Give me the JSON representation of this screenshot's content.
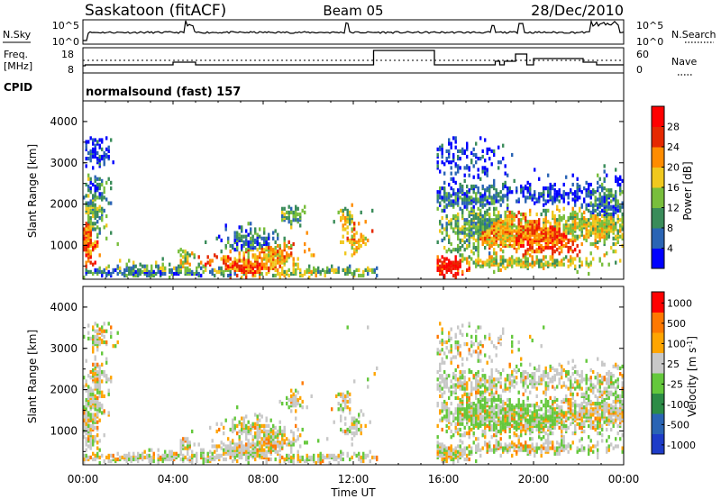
{
  "header": {
    "station": "Saskatoon (fitACF)",
    "beam": "Beam 05",
    "date": "28/Dec/2010"
  },
  "top_panels": {
    "nsky_label": "N.Sky",
    "nsky_ticks": [
      "10^5",
      "10^0"
    ],
    "nsearch_label": "N.Search",
    "nsearch_ticks": [
      "10^5",
      "10^0"
    ],
    "freq_label_line1": "Freq.",
    "freq_label_line2": "[MHz]",
    "freq_ticks": [
      "18",
      "8"
    ],
    "nave_label": "Nave",
    "nave_ticks": [
      "60",
      "0"
    ],
    "cpid_label": "CPID",
    "cpid_text": "normalsound (fast) 157"
  },
  "chart_data": [
    {
      "type": "heatmap",
      "panel": "power",
      "ylabel": "Slant Range [km]",
      "yticks": [
        "1000",
        "2000",
        "3000",
        "4000"
      ],
      "ylim": [
        180,
        4500
      ],
      "xlim": [
        0,
        24
      ],
      "colorbar_label": "Power [dB]",
      "colorbar_ticks": [
        "4",
        "8",
        "12",
        "16",
        "20",
        "24",
        "28"
      ],
      "colors": [
        "#0000ff",
        "#2a64b4",
        "#3a8c5a",
        "#78be3c",
        "#f0c81e",
        "#ff8c00",
        "#e62800",
        "#ff0000"
      ],
      "data_gap_hours": [
        13.0,
        15.6
      ]
    },
    {
      "type": "heatmap",
      "panel": "velocity",
      "ylabel": "Slant Range [km]",
      "yticks": [
        "1000",
        "2000",
        "3000",
        "4000"
      ],
      "ylim": [
        180,
        4500
      ],
      "xlim": [
        0,
        24
      ],
      "colorbar_label": "Velocity [m s^-1]",
      "colorbar_ticks": [
        "1000",
        "500",
        "100",
        "25",
        "-25",
        "-100",
        "-500",
        "-1000"
      ],
      "colors": [
        "#1e3cc8",
        "#2a64b4",
        "#2c8c46",
        "#64c83c",
        "#c8c8c8",
        "#ffa500",
        "#ff7800",
        "#ff0000"
      ],
      "data_gap_hours": [
        13.0,
        15.6
      ]
    }
  ],
  "xaxis": {
    "ticks": [
      "00:00",
      "04:00",
      "08:00",
      "12:00",
      "16:00",
      "20:00",
      "00:00"
    ],
    "label": "Time UT"
  }
}
